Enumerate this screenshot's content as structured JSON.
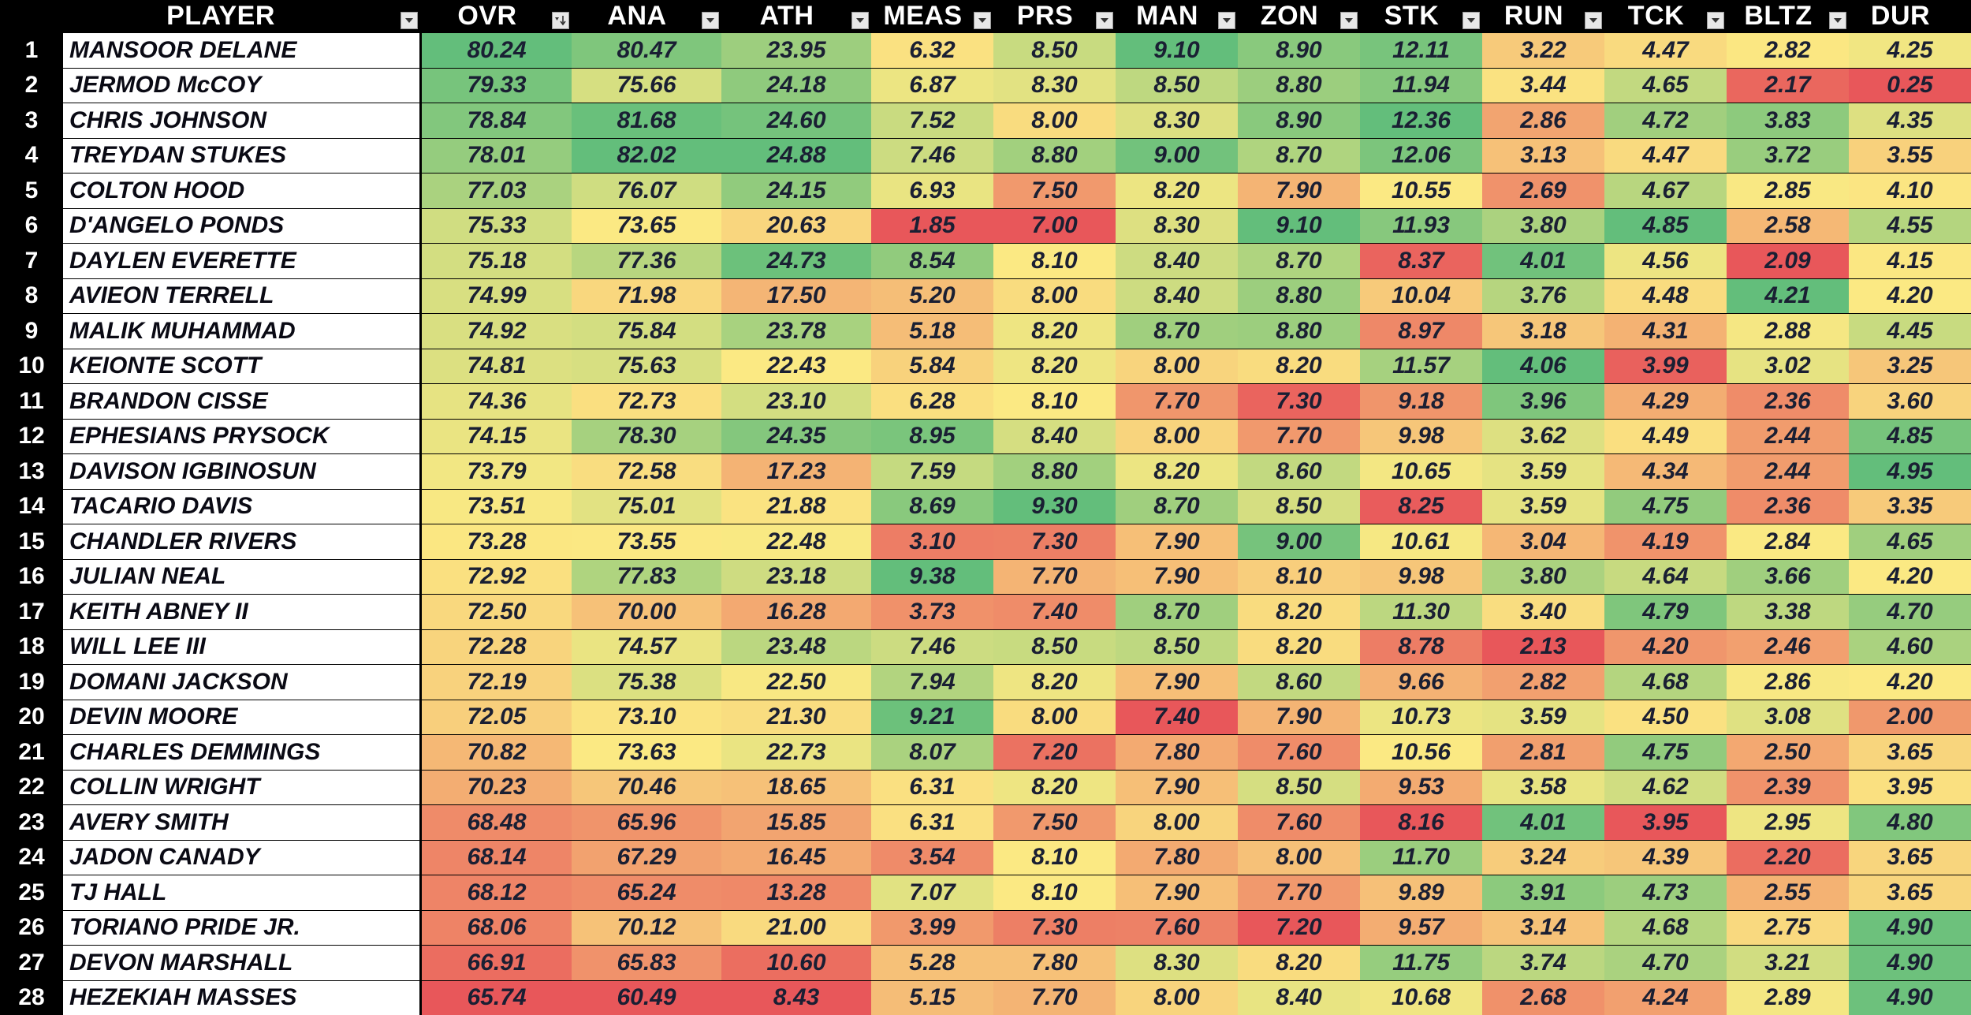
{
  "columns": [
    {
      "key": "player",
      "label": "PLAYER",
      "filter": "dropdown"
    },
    {
      "key": "ovr",
      "label": "OVR",
      "filter": "sorted-desc"
    },
    {
      "key": "ana",
      "label": "ANA",
      "filter": "dropdown"
    },
    {
      "key": "ath",
      "label": "ATH",
      "filter": "dropdown"
    },
    {
      "key": "meas",
      "label": "MEAS",
      "filter": "dropdown"
    },
    {
      "key": "prs",
      "label": "PRS",
      "filter": "dropdown"
    },
    {
      "key": "man",
      "label": "MAN",
      "filter": "dropdown"
    },
    {
      "key": "zon",
      "label": "ZON",
      "filter": "dropdown"
    },
    {
      "key": "stk",
      "label": "STK",
      "filter": "dropdown"
    },
    {
      "key": "run",
      "label": "RUN",
      "filter": "dropdown"
    },
    {
      "key": "tck",
      "label": "TCK",
      "filter": "dropdown"
    },
    {
      "key": "bltz",
      "label": "BLTZ",
      "filter": "dropdown"
    },
    {
      "key": "dur",
      "label": "DUR",
      "filter": "none"
    }
  ],
  "rows": [
    {
      "num": "1",
      "player": "MANSOOR DELANE",
      "values": [
        "80.24",
        "80.47",
        "23.95",
        "6.32",
        "8.50",
        "9.10",
        "8.90",
        "12.11",
        "3.22",
        "4.47",
        "2.82",
        "4.25"
      ]
    },
    {
      "num": "2",
      "player": "JERMOD McCOY",
      "values": [
        "79.33",
        "75.66",
        "24.18",
        "6.87",
        "8.30",
        "8.50",
        "8.80",
        "11.94",
        "3.44",
        "4.65",
        "2.17",
        "0.25"
      ]
    },
    {
      "num": "3",
      "player": "CHRIS JOHNSON",
      "values": [
        "78.84",
        "81.68",
        "24.60",
        "7.52",
        "8.00",
        "8.30",
        "8.90",
        "12.36",
        "2.86",
        "4.72",
        "3.83",
        "4.35"
      ]
    },
    {
      "num": "4",
      "player": "TREYDAN STUKES",
      "values": [
        "78.01",
        "82.02",
        "24.88",
        "7.46",
        "8.80",
        "9.00",
        "8.70",
        "12.06",
        "3.13",
        "4.47",
        "3.72",
        "3.55"
      ]
    },
    {
      "num": "5",
      "player": "COLTON HOOD",
      "values": [
        "77.03",
        "76.07",
        "24.15",
        "6.93",
        "7.50",
        "8.20",
        "7.90",
        "10.55",
        "2.69",
        "4.67",
        "2.85",
        "4.10"
      ]
    },
    {
      "num": "6",
      "player": "D'ANGELO PONDS",
      "values": [
        "75.33",
        "73.65",
        "20.63",
        "1.85",
        "7.00",
        "8.30",
        "9.10",
        "11.93",
        "3.80",
        "4.85",
        "2.58",
        "4.55"
      ]
    },
    {
      "num": "7",
      "player": "DAYLEN EVERETTE",
      "values": [
        "75.18",
        "77.36",
        "24.73",
        "8.54",
        "8.10",
        "8.40",
        "8.70",
        "8.37",
        "4.01",
        "4.56",
        "2.09",
        "4.15"
      ]
    },
    {
      "num": "8",
      "player": "AVIEON TERRELL",
      "values": [
        "74.99",
        "71.98",
        "17.50",
        "5.20",
        "8.00",
        "8.40",
        "8.80",
        "10.04",
        "3.76",
        "4.48",
        "4.21",
        "4.20"
      ]
    },
    {
      "num": "9",
      "player": "MALIK MUHAMMAD",
      "values": [
        "74.92",
        "75.84",
        "23.78",
        "5.18",
        "8.20",
        "8.70",
        "8.80",
        "8.97",
        "3.18",
        "4.31",
        "2.88",
        "4.45"
      ]
    },
    {
      "num": "10",
      "player": "KEIONTE SCOTT",
      "values": [
        "74.81",
        "75.63",
        "22.43",
        "5.84",
        "8.20",
        "8.00",
        "8.20",
        "11.57",
        "4.06",
        "3.99",
        "3.02",
        "3.25"
      ]
    },
    {
      "num": "11",
      "player": "BRANDON CISSE",
      "values": [
        "74.36",
        "72.73",
        "23.10",
        "6.28",
        "8.10",
        "7.70",
        "7.30",
        "9.18",
        "3.96",
        "4.29",
        "2.36",
        "3.60"
      ]
    },
    {
      "num": "12",
      "player": "EPHESIANS PRYSOCK",
      "values": [
        "74.15",
        "78.30",
        "24.35",
        "8.95",
        "8.40",
        "8.00",
        "7.70",
        "9.98",
        "3.62",
        "4.49",
        "2.44",
        "4.85"
      ]
    },
    {
      "num": "13",
      "player": "DAVISON IGBINOSUN",
      "values": [
        "73.79",
        "72.58",
        "17.23",
        "7.59",
        "8.80",
        "8.20",
        "8.60",
        "10.65",
        "3.59",
        "4.34",
        "2.44",
        "4.95"
      ]
    },
    {
      "num": "14",
      "player": "TACARIO DAVIS",
      "values": [
        "73.51",
        "75.01",
        "21.88",
        "8.69",
        "9.30",
        "8.70",
        "8.50",
        "8.25",
        "3.59",
        "4.75",
        "2.36",
        "3.35"
      ]
    },
    {
      "num": "15",
      "player": "CHANDLER RIVERS",
      "values": [
        "73.28",
        "73.55",
        "22.48",
        "3.10",
        "7.30",
        "7.90",
        "9.00",
        "10.61",
        "3.04",
        "4.19",
        "2.84",
        "4.65"
      ]
    },
    {
      "num": "16",
      "player": "JULIAN NEAL",
      "values": [
        "72.92",
        "77.83",
        "23.18",
        "9.38",
        "7.70",
        "7.90",
        "8.10",
        "9.98",
        "3.80",
        "4.64",
        "3.66",
        "4.20"
      ]
    },
    {
      "num": "17",
      "player": "KEITH ABNEY II",
      "values": [
        "72.50",
        "70.00",
        "16.28",
        "3.73",
        "7.40",
        "8.70",
        "8.20",
        "11.30",
        "3.40",
        "4.79",
        "3.38",
        "4.70"
      ]
    },
    {
      "num": "18",
      "player": "WILL LEE III",
      "values": [
        "72.28",
        "74.57",
        "23.48",
        "7.46",
        "8.50",
        "8.50",
        "8.20",
        "8.78",
        "2.13",
        "4.20",
        "2.46",
        "4.60"
      ]
    },
    {
      "num": "19",
      "player": "DOMANI JACKSON",
      "values": [
        "72.19",
        "75.38",
        "22.50",
        "7.94",
        "8.20",
        "7.90",
        "8.60",
        "9.66",
        "2.82",
        "4.68",
        "2.86",
        "4.20"
      ]
    },
    {
      "num": "20",
      "player": "DEVIN MOORE",
      "values": [
        "72.05",
        "73.10",
        "21.30",
        "9.21",
        "8.00",
        "7.40",
        "7.90",
        "10.73",
        "3.59",
        "4.50",
        "3.08",
        "2.00"
      ]
    },
    {
      "num": "21",
      "player": "CHARLES DEMMINGS",
      "values": [
        "70.82",
        "73.63",
        "22.73",
        "8.07",
        "7.20",
        "7.80",
        "7.60",
        "10.56",
        "2.81",
        "4.75",
        "2.50",
        "3.65"
      ]
    },
    {
      "num": "22",
      "player": "COLLIN WRIGHT",
      "values": [
        "70.23",
        "70.46",
        "18.65",
        "6.31",
        "8.20",
        "7.90",
        "8.50",
        "9.53",
        "3.58",
        "4.62",
        "2.39",
        "3.95"
      ]
    },
    {
      "num": "23",
      "player": "AVERY SMITH",
      "values": [
        "68.48",
        "65.96",
        "15.85",
        "6.31",
        "7.50",
        "8.00",
        "7.60",
        "8.16",
        "4.01",
        "3.95",
        "2.95",
        "4.80"
      ]
    },
    {
      "num": "24",
      "player": "JADON CANADY",
      "values": [
        "68.14",
        "67.29",
        "16.45",
        "3.54",
        "8.10",
        "7.80",
        "8.00",
        "11.70",
        "3.24",
        "4.39",
        "2.20",
        "3.65"
      ]
    },
    {
      "num": "25",
      "player": "TJ HALL",
      "values": [
        "68.12",
        "65.24",
        "13.28",
        "7.07",
        "8.10",
        "7.90",
        "7.70",
        "9.89",
        "3.91",
        "4.73",
        "2.55",
        "3.65"
      ]
    },
    {
      "num": "26",
      "player": "TORIANO PRIDE JR.",
      "values": [
        "68.06",
        "70.12",
        "21.00",
        "3.99",
        "7.30",
        "7.60",
        "7.20",
        "9.57",
        "3.14",
        "4.68",
        "2.75",
        "4.90"
      ]
    },
    {
      "num": "27",
      "player": "DEVON MARSHALL",
      "values": [
        "66.91",
        "65.83",
        "10.60",
        "5.28",
        "7.80",
        "8.30",
        "8.20",
        "11.75",
        "3.74",
        "4.70",
        "3.21",
        "4.90"
      ]
    },
    {
      "num": "28",
      "player": "HEZEKIAH MASSES",
      "values": [
        "65.74",
        "60.49",
        "8.43",
        "5.15",
        "7.70",
        "8.00",
        "8.40",
        "10.68",
        "2.68",
        "4.24",
        "2.89",
        "4.90"
      ]
    }
  ],
  "colors": {
    "scale_low": "#e8575a",
    "scale_mid": "#fbe983",
    "scale_high": "#63be7b",
    "header_bg": "#000000",
    "header_text": "#ffffff",
    "name_bg": "#ffffff",
    "cell_text": "#1a1f33"
  },
  "icons": {
    "filter": "dropdown-arrow-icon",
    "sort": "sort-descending-icon"
  }
}
